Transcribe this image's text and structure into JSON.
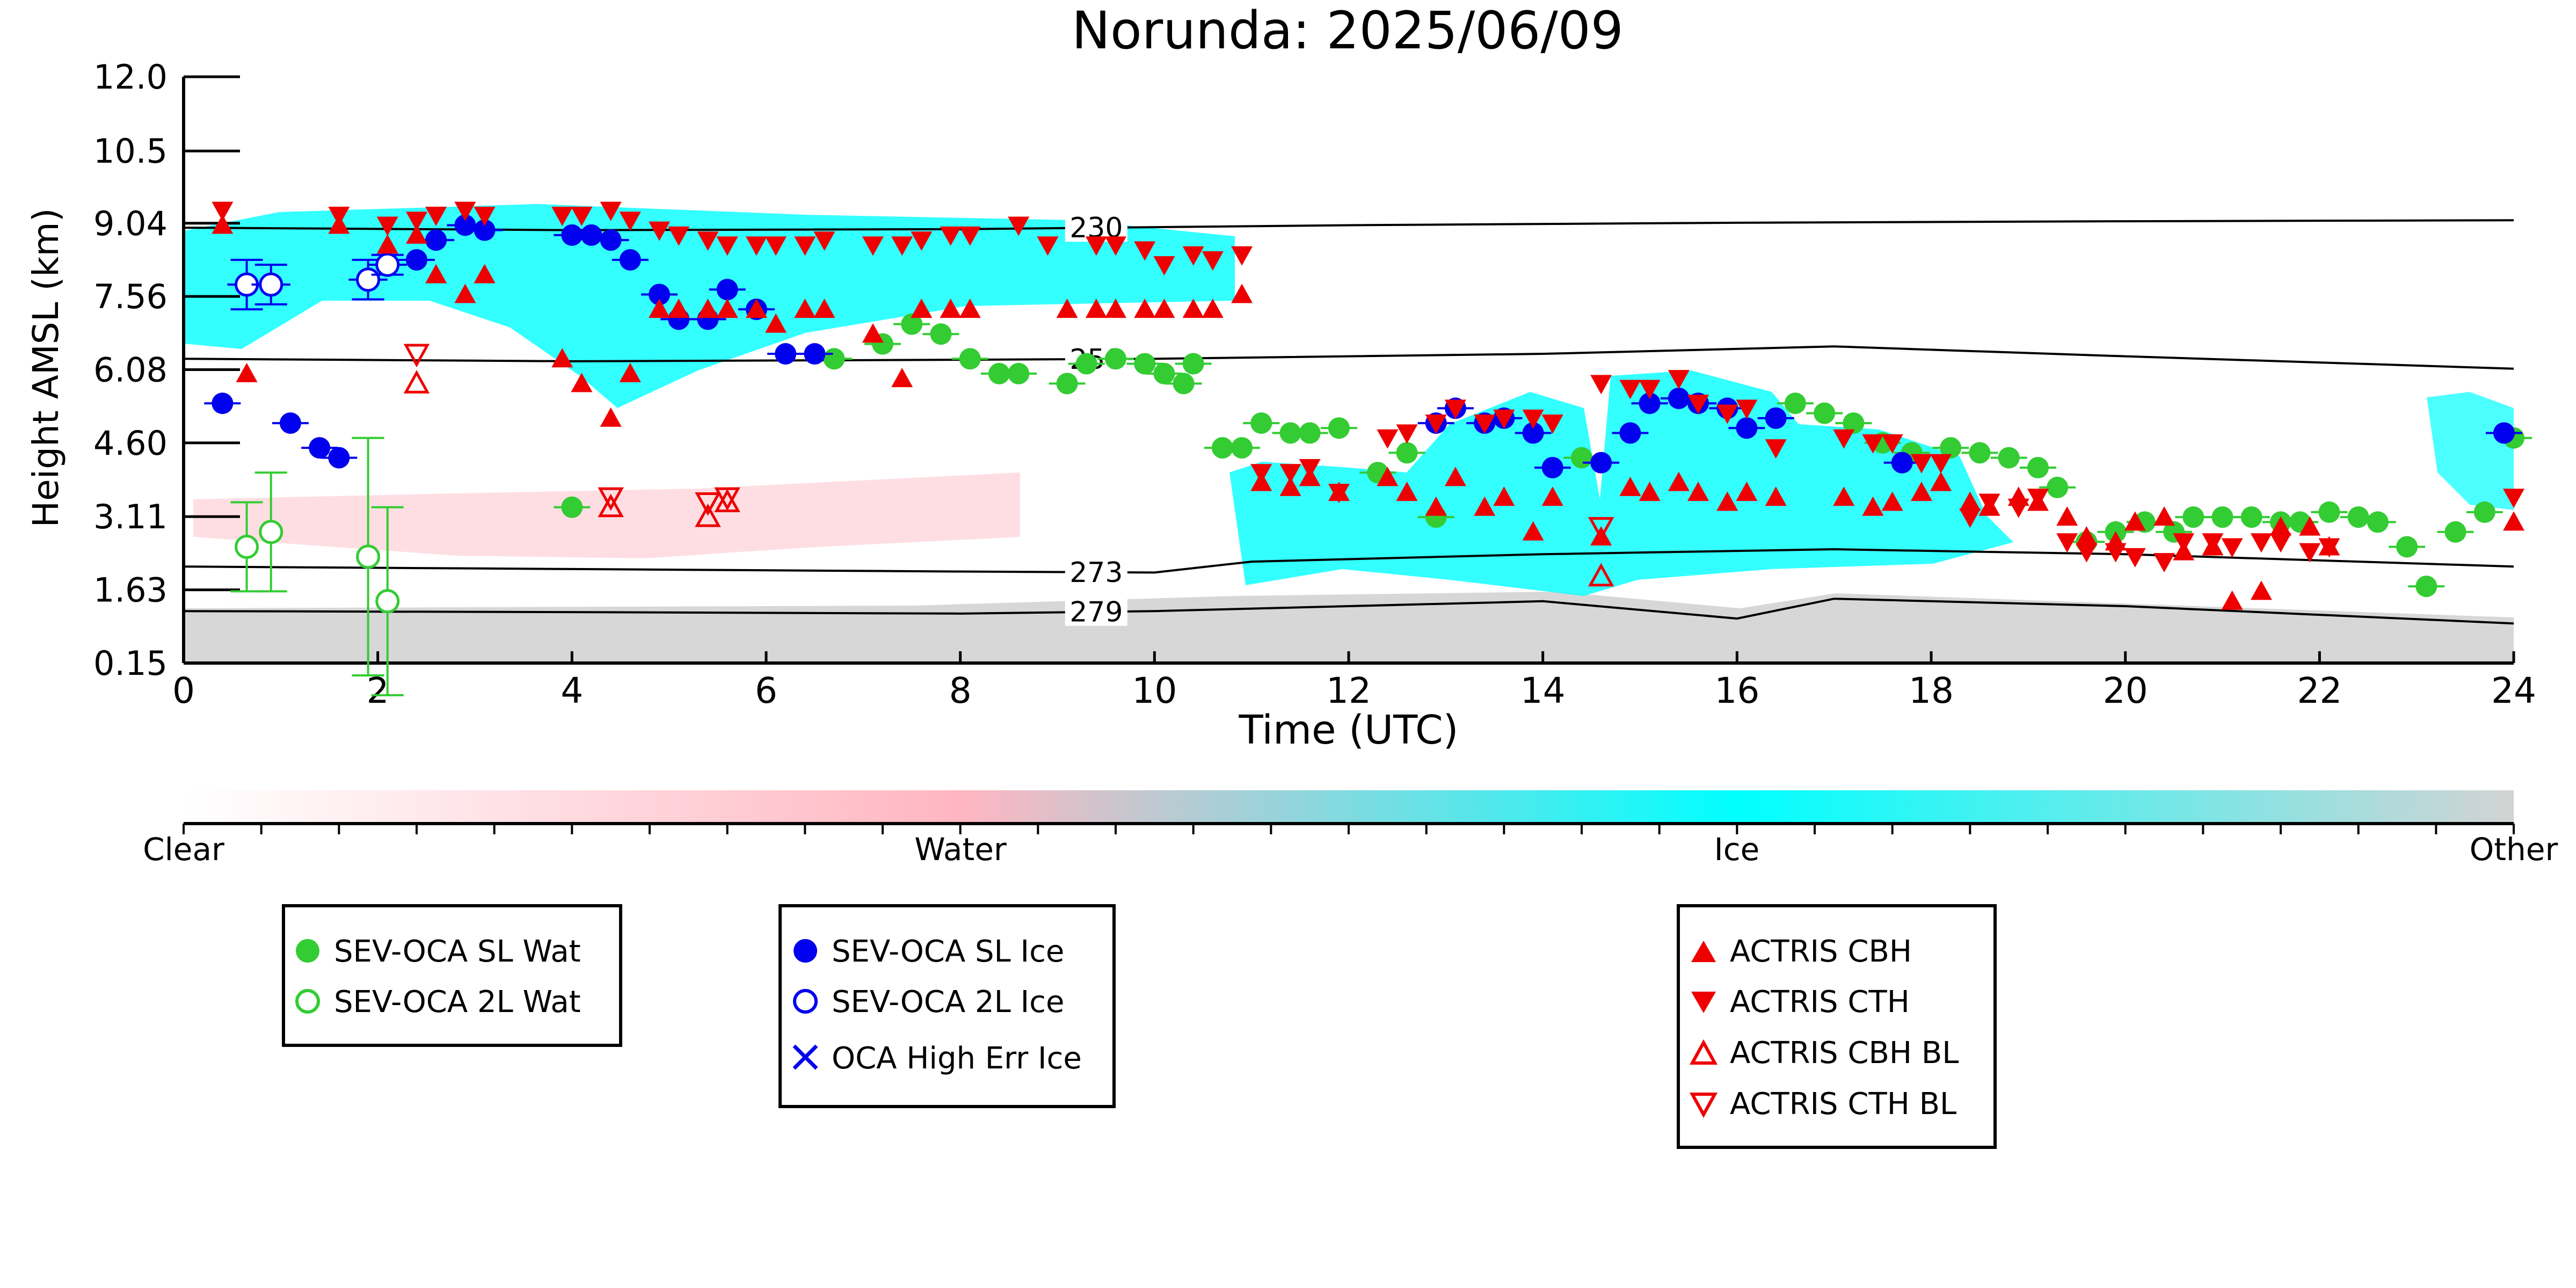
{
  "chart_data": {
    "type": "scatter",
    "title": "Norunda: 2025/06/09",
    "xlabel": "Time (UTC)",
    "ylabel": "Height AMSL (km)",
    "xlim": [
      0,
      24
    ],
    "ylim": [
      0.15,
      12.0
    ],
    "x_ticks": [
      "0",
      "2",
      "4",
      "6",
      "8",
      "10",
      "12",
      "14",
      "16",
      "18",
      "20",
      "22",
      "24"
    ],
    "y_ticks": [
      "0.15",
      "1.63",
      "3.11",
      "4.60",
      "6.08",
      "7.56",
      "9.04",
      "10.5",
      "12.0"
    ],
    "y_tick_values": [
      0.15,
      1.63,
      3.11,
      4.6,
      6.08,
      7.56,
      9.04,
      10.5,
      12.0
    ],
    "colorbar": {
      "labels": [
        "Clear",
        "Water",
        "Ice",
        "Other"
      ],
      "colors": [
        "#ffffff",
        "#ffb6c1",
        "#00ffff",
        "#d3d3d3"
      ]
    },
    "isotherms": [
      {
        "label": "230",
        "label_x": 9.4,
        "x": [
          0,
          4,
          8,
          12,
          16,
          20,
          24
        ],
        "y": [
          8.95,
          8.9,
          8.92,
          9.0,
          9.05,
          9.08,
          9.1
        ]
      },
      {
        "label": "250",
        "label_x": 9.4,
        "x": [
          0,
          4,
          8,
          10,
          14,
          17,
          20,
          24
        ],
        "y": [
          6.3,
          6.25,
          6.28,
          6.3,
          6.4,
          6.55,
          6.35,
          6.1
        ]
      },
      {
        "label": "273",
        "label_x": 9.4,
        "x": [
          0,
          4,
          8,
          10,
          11,
          14,
          17,
          20,
          24
        ],
        "y": [
          2.1,
          2.05,
          2.0,
          1.98,
          2.2,
          2.35,
          2.45,
          2.35,
          2.1
        ]
      },
      {
        "label": "279",
        "label_x": 9.4,
        "x": [
          0,
          4,
          8,
          10,
          12,
          14,
          16,
          17,
          20,
          24
        ],
        "y": [
          1.2,
          1.18,
          1.15,
          1.2,
          1.3,
          1.4,
          1.05,
          1.45,
          1.3,
          0.95
        ]
      }
    ],
    "series": [
      {
        "name": "SEV-OCA SL Wat",
        "color": "#33cc33",
        "marker": "circle-filled",
        "x": [
          6.7,
          7.2,
          7.5,
          7.8,
          8.1,
          8.4,
          8.6,
          9.1,
          9.3,
          9.6,
          9.9,
          10.1,
          10.3,
          10.4,
          10.7,
          10.9,
          11.1,
          11.4,
          11.6,
          11.9,
          12.3,
          12.6,
          12.9,
          14.4,
          16.6,
          16.9,
          17.2,
          17.5,
          17.8,
          18.2,
          18.5,
          18.8,
          19.1,
          19.3,
          19.6,
          19.9,
          20.2,
          20.5,
          20.7,
          21.0,
          21.3,
          21.6,
          21.8,
          22.1,
          22.4,
          22.6,
          22.9,
          23.1,
          23.4,
          23.7,
          24.0,
          4.0
        ],
        "y": [
          6.3,
          6.6,
          7.0,
          6.8,
          6.3,
          6.0,
          6.0,
          5.8,
          6.2,
          6.3,
          6.2,
          6.0,
          5.8,
          6.2,
          4.5,
          4.5,
          5.0,
          4.8,
          4.8,
          4.9,
          4.0,
          4.4,
          3.1,
          4.3,
          5.4,
          5.2,
          5.0,
          4.6,
          4.4,
          4.5,
          4.4,
          4.3,
          4.1,
          3.7,
          2.6,
          2.8,
          3.0,
          2.8,
          3.1,
          3.1,
          3.1,
          3.0,
          3.0,
          3.2,
          3.1,
          3.0,
          2.5,
          1.7,
          2.8,
          3.2,
          4.7,
          3.3
        ],
        "yerr": [],
        "xerr": []
      },
      {
        "name": "SEV-OCA 2L Wat",
        "color": "#33cc33",
        "marker": "circle-open",
        "x": [
          0.65,
          0.9,
          1.9,
          2.1
        ],
        "y": [
          2.5,
          2.8,
          2.3,
          1.4
        ],
        "yerr": [
          0.9,
          1.2,
          2.4,
          1.9
        ],
        "xerr": []
      },
      {
        "name": "SEV-OCA SL Ice",
        "color": "#0000ee",
        "marker": "circle-filled",
        "x": [
          0.4,
          1.1,
          1.4,
          1.6,
          2.4,
          2.6,
          2.9,
          3.1,
          4.0,
          4.2,
          4.4,
          4.6,
          4.9,
          5.1,
          5.4,
          5.6,
          5.9,
          6.2,
          6.5,
          12.9,
          13.1,
          13.4,
          13.6,
          13.9,
          14.1,
          14.6,
          14.9,
          15.1,
          15.4,
          15.6,
          15.9,
          16.1,
          16.4,
          17.7,
          23.9
        ],
        "y": [
          5.4,
          5.0,
          4.5,
          4.3,
          8.3,
          8.7,
          9.0,
          8.9,
          8.8,
          8.8,
          8.7,
          8.3,
          7.6,
          7.1,
          7.1,
          7.7,
          7.3,
          6.4,
          6.4,
          5.0,
          5.3,
          5.0,
          5.1,
          4.8,
          4.1,
          4.2,
          4.8,
          5.4,
          5.5,
          5.4,
          5.3,
          4.9,
          5.1,
          4.2,
          4.8
        ],
        "yerr": [],
        "xerr": []
      },
      {
        "name": "SEV-OCA 2L Ice",
        "color": "#0000ee",
        "marker": "circle-open",
        "x": [
          0.65,
          0.9,
          1.9,
          2.1
        ],
        "y": [
          7.8,
          7.8,
          7.9,
          8.2
        ],
        "yerr": [
          0.5,
          0.4,
          0.4,
          0.2
        ],
        "xerr": [
          0.2,
          0.2,
          0.2,
          0.2
        ]
      },
      {
        "name": "OCA High Err Ice",
        "color": "#0000ee",
        "marker": "x",
        "x": [],
        "y": []
      },
      {
        "name": "ACTRIS CBH",
        "color": "#ee0000",
        "marker": "triangle-up-filled",
        "x": [
          0.4,
          0.65,
          1.6,
          2.1,
          2.4,
          2.6,
          2.9,
          3.1,
          3.9,
          4.1,
          4.4,
          4.6,
          4.9,
          5.1,
          5.4,
          5.6,
          5.9,
          6.1,
          6.4,
          6.6,
          7.1,
          7.4,
          7.6,
          7.9,
          8.1,
          9.1,
          9.4,
          9.6,
          9.9,
          10.1,
          10.4,
          10.6,
          10.9,
          11.1,
          11.4,
          11.6,
          11.9,
          12.4,
          12.6,
          12.9,
          13.1,
          13.4,
          13.6,
          13.9,
          14.1,
          14.6,
          14.9,
          15.1,
          15.4,
          15.6,
          15.9,
          16.1,
          16.4,
          17.1,
          17.4,
          17.6,
          17.9,
          18.1,
          18.4,
          18.6,
          18.9,
          19.1,
          19.4,
          19.6,
          19.9,
          20.1,
          20.4,
          20.6,
          20.9,
          21.1,
          21.4,
          21.6,
          21.9,
          22.1,
          24.0
        ],
        "y": [
          9.0,
          6.0,
          9.0,
          8.6,
          8.8,
          8.0,
          7.6,
          8.0,
          6.3,
          5.8,
          5.1,
          6.0,
          7.3,
          7.3,
          7.3,
          7.3,
          7.3,
          7.0,
          7.3,
          7.3,
          6.8,
          5.9,
          7.3,
          7.3,
          7.3,
          7.3,
          7.3,
          7.3,
          7.3,
          7.3,
          7.3,
          7.3,
          7.6,
          3.8,
          3.7,
          3.9,
          3.6,
          3.9,
          3.6,
          3.3,
          3.9,
          3.3,
          3.5,
          2.8,
          3.5,
          2.7,
          3.7,
          3.6,
          3.8,
          3.6,
          3.4,
          3.6,
          3.5,
          3.5,
          3.3,
          3.4,
          3.6,
          3.8,
          3.4,
          3.3,
          3.5,
          3.4,
          3.1,
          2.7,
          2.6,
          3.0,
          3.1,
          2.4,
          2.5,
          1.4,
          1.6,
          2.9,
          2.9,
          2.5,
          3.0
        ],
        "yerr": [],
        "xerr": []
      },
      {
        "name": "ACTRIS CTH",
        "color": "#ee0000",
        "marker": "triangle-down-filled",
        "x": [
          0.4,
          1.6,
          2.1,
          2.4,
          2.6,
          2.9,
          3.1,
          3.9,
          4.1,
          4.4,
          4.6,
          4.9,
          5.1,
          5.4,
          5.6,
          5.9,
          6.1,
          6.4,
          6.6,
          7.1,
          7.4,
          7.6,
          7.9,
          8.1,
          8.6,
          8.9,
          9.4,
          9.6,
          9.9,
          10.1,
          10.4,
          10.6,
          10.9,
          11.1,
          11.4,
          11.6,
          11.9,
          12.4,
          12.6,
          12.9,
          13.1,
          13.4,
          13.6,
          13.9,
          14.1,
          14.6,
          14.9,
          15.1,
          15.4,
          15.6,
          15.9,
          16.1,
          16.4,
          17.1,
          17.4,
          17.6,
          17.9,
          18.1,
          18.4,
          18.6,
          18.9,
          19.1,
          19.4,
          19.6,
          19.9,
          20.1,
          20.4,
          20.6,
          20.9,
          21.1,
          21.4,
          21.6,
          21.9,
          22.1,
          24.0
        ],
        "y": [
          9.3,
          9.2,
          9.0,
          9.1,
          9.2,
          9.3,
          9.2,
          9.2,
          9.2,
          9.3,
          9.1,
          8.9,
          8.8,
          8.7,
          8.6,
          8.6,
          8.6,
          8.6,
          8.7,
          8.6,
          8.6,
          8.7,
          8.8,
          8.8,
          9.0,
          8.6,
          8.6,
          8.6,
          8.5,
          8.2,
          8.4,
          8.3,
          8.4,
          4.0,
          4.0,
          4.1,
          3.6,
          4.7,
          4.8,
          5.0,
          5.3,
          5.0,
          5.1,
          5.1,
          5.0,
          5.8,
          5.7,
          5.7,
          5.9,
          5.4,
          5.2,
          5.3,
          4.5,
          4.7,
          4.6,
          4.6,
          4.2,
          4.2,
          3.1,
          3.4,
          3.3,
          3.5,
          2.6,
          2.4,
          2.4,
          2.3,
          2.2,
          2.6,
          2.6,
          2.5,
          2.6,
          2.6,
          2.4,
          2.5,
          3.5
        ],
        "yerr": [],
        "xerr": []
      },
      {
        "name": "ACTRIS CBH BL",
        "color": "#ee0000",
        "marker": "triangle-up-open",
        "x": [
          2.4,
          4.4,
          5.4,
          5.6,
          14.6
        ],
        "y": [
          5.8,
          3.3,
          3.1,
          3.4,
          1.9
        ],
        "yerr": [],
        "xerr": []
      },
      {
        "name": "ACTRIS CTH BL",
        "color": "#ee0000",
        "marker": "triangle-down-open",
        "x": [
          2.4,
          4.4,
          5.4,
          5.6,
          14.6
        ],
        "y": [
          6.4,
          3.5,
          3.4,
          3.5,
          2.9
        ],
        "yerr": [],
        "xerr": []
      }
    ],
    "grid": false,
    "legend_placement": "below"
  }
}
